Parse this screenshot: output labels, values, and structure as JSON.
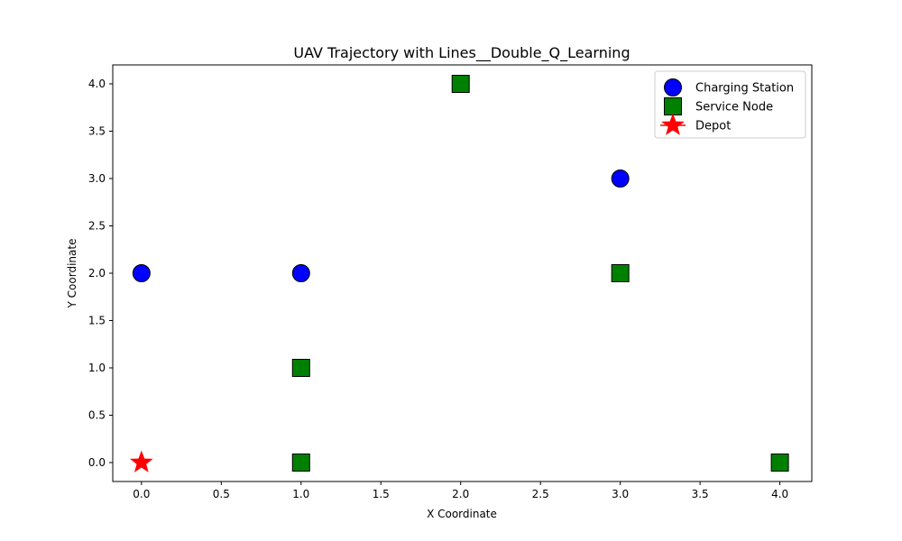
{
  "chart_data": {
    "type": "scatter",
    "title": "UAV Trajectory with Lines__Double_Q_Learning",
    "xlabel": "X Coordinate",
    "ylabel": "Y Coordinate",
    "xlim": [
      -0.18,
      4.2
    ],
    "ylim": [
      -0.2,
      4.2
    ],
    "xticks": [
      0.0,
      0.5,
      1.0,
      1.5,
      2.0,
      2.5,
      3.0,
      3.5,
      4.0
    ],
    "yticks": [
      0.0,
      0.5,
      1.0,
      1.5,
      2.0,
      2.5,
      3.0,
      3.5,
      4.0
    ],
    "xtick_labels": [
      "0.0",
      "0.5",
      "1.0",
      "1.5",
      "2.0",
      "2.5",
      "3.0",
      "3.5",
      "4.0"
    ],
    "ytick_labels": [
      "0.0",
      "0.5",
      "1.0",
      "1.5",
      "2.0",
      "2.5",
      "3.0",
      "3.5",
      "4.0"
    ],
    "grid": false,
    "legend_position": "top-right",
    "series": [
      {
        "name": "Charging Station",
        "marker": "circle",
        "color": "#0000ff",
        "points": [
          [
            0,
            2
          ],
          [
            1,
            2
          ],
          [
            3,
            3
          ]
        ]
      },
      {
        "name": "Service Node",
        "marker": "square",
        "color": "#008000",
        "points": [
          [
            1,
            0
          ],
          [
            1,
            1
          ],
          [
            2,
            4
          ],
          [
            3,
            2
          ],
          [
            4,
            0
          ]
        ]
      },
      {
        "name": "Depot",
        "marker": "star",
        "color": "#ff0000",
        "points": [
          [
            0,
            0
          ]
        ]
      }
    ]
  }
}
